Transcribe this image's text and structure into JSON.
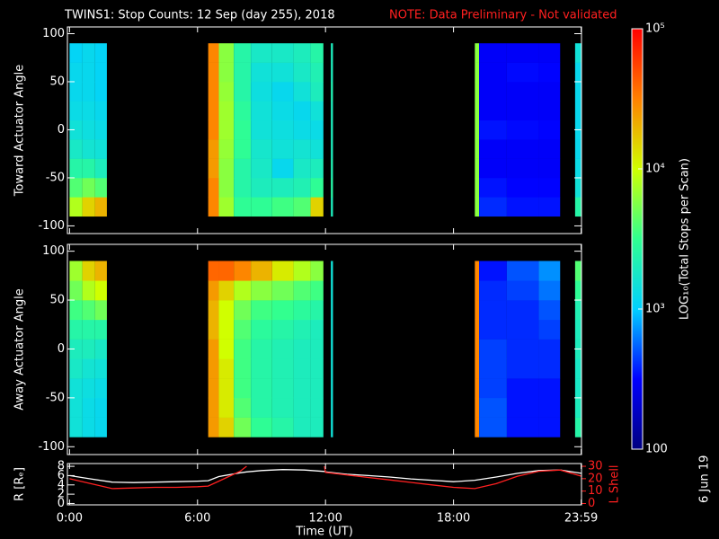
{
  "title": "TWINS1: Stop Counts: 12 Sep (day 255), 2018",
  "note": "NOTE: Data Preliminary - Not validated",
  "stamp": "6 Jun 19",
  "colorbar": {
    "label": "LOG₁₀(Total Stops per Scan)",
    "log": true,
    "zlim": [
      100,
      100000
    ],
    "zticks": [
      {
        "value": 100000,
        "label": "10⁵"
      },
      {
        "value": 10000,
        "label": "10⁴"
      },
      {
        "value": 1000,
        "label": "10³"
      },
      100
    ],
    "colormap": [
      "#000080",
      "#0000ff",
      "#00d0ff",
      "#30ff90",
      "#d0ff00",
      "#ff8000",
      "#ff0000"
    ]
  },
  "chart_data": [
    {
      "type": "heatmap",
      "ylabel": "Toward Actuator Angle",
      "xlim": [
        -0.1,
        24
      ],
      "ylim": [
        -108,
        107
      ],
      "yticks": [
        -100,
        -50,
        0,
        50,
        100
      ],
      "xbins": [
        0,
        0.6,
        1.2,
        1.75,
        6.5,
        7,
        7.7,
        8.5,
        9.5,
        10.5,
        11.3,
        11.9,
        12.25,
        12.35,
        19,
        19.2,
        20.5,
        22,
        23,
        23.7,
        24
      ],
      "ybins": [
        -90,
        -70,
        -50,
        -30,
        -10,
        10,
        30,
        50,
        70,
        90
      ],
      "values": [
        [
          8000,
          15000,
          20000,
          null,
          30000,
          7000,
          3000,
          3000,
          3500,
          4000,
          15000,
          null,
          2000,
          null,
          6000,
          400,
          350,
          350,
          null,
          2500
        ],
        [
          4000,
          5000,
          4000,
          null,
          30000,
          6000,
          2500,
          2000,
          2000,
          2200,
          3000,
          null,
          2500,
          null,
          6000,
          350,
          320,
          320,
          null,
          1500
        ],
        [
          2500,
          2500,
          2000,
          null,
          25000,
          6000,
          2500,
          1800,
          1200,
          1800,
          2000,
          null,
          2200,
          null,
          6000,
          300,
          300,
          300,
          null,
          1300
        ],
        [
          1800,
          1600,
          1500,
          null,
          25000,
          6500,
          3000,
          1700,
          1500,
          1600,
          1500,
          null,
          2000,
          null,
          6000,
          300,
          300,
          300,
          null,
          1200
        ],
        [
          1500,
          1400,
          1300,
          null,
          30000,
          7000,
          3000,
          1500,
          1400,
          1300,
          1300,
          null,
          2000,
          null,
          6000,
          350,
          330,
          320,
          null,
          1200
        ],
        [
          1300,
          1300,
          1200,
          null,
          30000,
          7000,
          2800,
          1500,
          1300,
          1200,
          1500,
          null,
          2000,
          null,
          6000,
          300,
          300,
          300,
          null,
          1200
        ],
        [
          1200,
          1200,
          1100,
          null,
          30000,
          6500,
          2500,
          1400,
          1200,
          1500,
          2000,
          null,
          2200,
          null,
          6000,
          300,
          300,
          300,
          null,
          1200
        ],
        [
          1200,
          1200,
          1100,
          null,
          30000,
          6000,
          2500,
          1500,
          1500,
          1800,
          2200,
          null,
          2000,
          null,
          6000,
          300,
          330,
          320,
          null,
          1200
        ],
        [
          1100,
          1200,
          1100,
          null,
          30000,
          6000,
          2500,
          1800,
          1800,
          2000,
          2500,
          null,
          2000,
          null,
          6000,
          300,
          300,
          300,
          null,
          1500
        ]
      ]
    },
    {
      "type": "heatmap",
      "ylabel": "Away Actuator Angle",
      "xlim": [
        -0.1,
        24
      ],
      "ylim": [
        -108,
        107
      ],
      "yticks": [
        -100,
        -50,
        0,
        50,
        100
      ],
      "xbins": [
        0,
        0.6,
        1.2,
        1.75,
        6.5,
        7,
        7.7,
        8.5,
        9.5,
        10.5,
        11.3,
        11.9,
        12.25,
        12.35,
        19,
        19.2,
        20.5,
        22,
        23,
        23.7,
        24
      ],
      "ybins": [
        -90,
        -70,
        -50,
        -30,
        -10,
        10,
        30,
        50,
        70,
        90
      ],
      "values": [
        [
          1500,
          1300,
          1200,
          null,
          25000,
          15000,
          5000,
          3000,
          2500,
          2000,
          2000,
          null,
          1500,
          null,
          30000,
          500,
          350,
          350,
          null,
          2500
        ],
        [
          1500,
          1300,
          1200,
          null,
          25000,
          12000,
          4000,
          2500,
          2200,
          2000,
          2000,
          null,
          1500,
          null,
          30000,
          500,
          350,
          350,
          null,
          2000
        ],
        [
          1500,
          1400,
          1300,
          null,
          25000,
          12000,
          3500,
          2500,
          2200,
          2000,
          2000,
          null,
          1500,
          null,
          30000,
          450,
          350,
          350,
          null,
          1800
        ],
        [
          1800,
          1600,
          1500,
          null,
          25000,
          12000,
          3500,
          2500,
          2200,
          2000,
          2000,
          null,
          1500,
          null,
          30000,
          450,
          400,
          400,
          null,
          1800
        ],
        [
          2000,
          2000,
          1800,
          null,
          25000,
          10000,
          3500,
          2500,
          2200,
          2000,
          2000,
          null,
          1500,
          null,
          30000,
          450,
          400,
          400,
          null,
          2000
        ],
        [
          2500,
          2500,
          2500,
          null,
          20000,
          10000,
          4000,
          2800,
          2500,
          2200,
          2000,
          null,
          1500,
          null,
          30000,
          400,
          400,
          450,
          null,
          2000
        ],
        [
          3500,
          4000,
          5000,
          null,
          20000,
          10000,
          5000,
          3500,
          3200,
          2800,
          2500,
          null,
          1500,
          null,
          30000,
          400,
          400,
          500,
          null,
          2200
        ],
        [
          5000,
          8000,
          10000,
          null,
          25000,
          15000,
          8000,
          6000,
          5000,
          4000,
          3500,
          null,
          1500,
          null,
          30000,
          400,
          450,
          600,
          null,
          3000
        ],
        [
          7000,
          15000,
          20000,
          null,
          40000,
          40000,
          30000,
          20000,
          12000,
          8000,
          6000,
          null,
          1500,
          null,
          30000,
          350,
          500,
          700,
          null,
          4000
        ]
      ]
    },
    {
      "type": "line",
      "xlabel": "Time (UT)",
      "ylabel": "R [Rₑ]",
      "y2label": "L Shell",
      "xlim": [
        -0.1,
        24
      ],
      "ylim": [
        -0.3,
        8.6
      ],
      "y2lim": [
        -1.1,
        32.2
      ],
      "xticks": [
        {
          "value": 0,
          "label": "0:00"
        },
        {
          "value": 6,
          "label": "6:00"
        },
        {
          "value": 12,
          "label": "12:00"
        },
        {
          "value": 18,
          "label": "18:00"
        },
        {
          "value": 23.983,
          "label": "23:59"
        }
      ],
      "yticks": [
        0,
        2,
        4,
        6,
        8
      ],
      "y2ticks": [
        0,
        10,
        20,
        30
      ],
      "x": [
        0,
        1,
        2,
        3,
        4,
        5,
        6,
        6.5,
        7,
        8,
        8.3,
        9,
        10,
        11,
        11.95,
        12,
        13,
        14,
        15,
        16,
        17,
        18,
        19,
        20,
        21,
        22,
        23,
        24
      ],
      "series": [
        {
          "name": "R",
          "color": "#ffffff",
          "values": [
            6.0,
            5.3,
            4.6,
            4.5,
            4.6,
            4.7,
            4.8,
            4.9,
            5.8,
            6.6,
            6.8,
            7.1,
            7.3,
            7.2,
            6.9,
            6.8,
            6.3,
            6.0,
            5.7,
            5.3,
            5.0,
            4.7,
            5.0,
            5.7,
            6.5,
            7.1,
            7.2,
            6.5
          ]
        },
        {
          "name": "L Shell",
          "color": "#ff2020",
          "axis": "y2",
          "values": [
            20,
            16,
            12,
            12.5,
            13,
            13,
            13.5,
            14,
            18,
            26,
            30,
            null,
            null,
            null,
            30,
            25,
            23,
            21,
            19,
            17,
            15,
            13,
            12,
            16,
            22,
            26,
            27,
            22
          ]
        }
      ]
    }
  ]
}
